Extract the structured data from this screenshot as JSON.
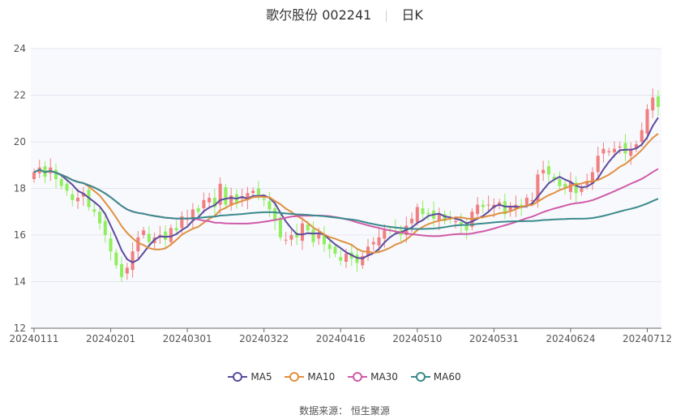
{
  "header": {
    "title": "歌尔股份 002241",
    "period": "日K"
  },
  "source": "数据来源： 恒生聚源",
  "colors": {
    "up": "#f08080",
    "down": "#90ee60",
    "grid": "#e3e6ef",
    "plot_bg": "#f8f9fd"
  },
  "chart_data": {
    "type": "candlestick",
    "title": "歌尔股份 002241",
    "ylim": [
      12,
      24
    ],
    "yticks": [
      12,
      14,
      16,
      18,
      20,
      22,
      24
    ],
    "x_ticks": [
      "20240111",
      "20240201",
      "20240301",
      "20240322",
      "20240416",
      "20240510",
      "20240531",
      "20240624",
      "20240712"
    ],
    "x_tick_index": [
      0,
      14,
      28,
      42,
      56,
      70,
      84,
      98,
      112
    ],
    "close": [
      18.7,
      18.9,
      18.5,
      18.9,
      18.4,
      18.1,
      17.9,
      17.5,
      17.6,
      17.8,
      17.2,
      17.0,
      16.5,
      16.0,
      15.3,
      14.7,
      14.2,
      14.6,
      15.3,
      15.9,
      16.2,
      15.7,
      15.9,
      16.0,
      15.8,
      16.3,
      16.2,
      16.8,
      16.7,
      17.1,
      17.0,
      17.5,
      17.6,
      17.2,
      18.2,
      17.3,
      17.7,
      17.4,
      17.6,
      17.8,
      17.9,
      17.7,
      17.5,
      17.1,
      16.6,
      15.9,
      15.8,
      16.0,
      15.9,
      16.5,
      16.2,
      15.7,
      16.1,
      15.6,
      15.4,
      15.2,
      14.9,
      15.2,
      15.0,
      14.8,
      15.1,
      15.5,
      15.7,
      15.9,
      16.2,
      16.2,
      16.3,
      16.0,
      16.4,
      16.7,
      17.2,
      16.9,
      16.9,
      16.7,
      16.9,
      16.6,
      16.7,
      16.6,
      16.4,
      16.2,
      17.0,
      17.3,
      17.2,
      17.3,
      17.3,
      17.4,
      16.9,
      17.2,
      17.3,
      17.2,
      17.6,
      17.5,
      18.6,
      18.8,
      18.6,
      18.4,
      18.1,
      18.0,
      18.3,
      17.8,
      18.0,
      18.3,
      18.7,
      19.4,
      19.7,
      19.6,
      19.7,
      19.8,
      19.5,
      19.7,
      19.9,
      20.5,
      21.4,
      21.9,
      21.5
    ]
  }
}
